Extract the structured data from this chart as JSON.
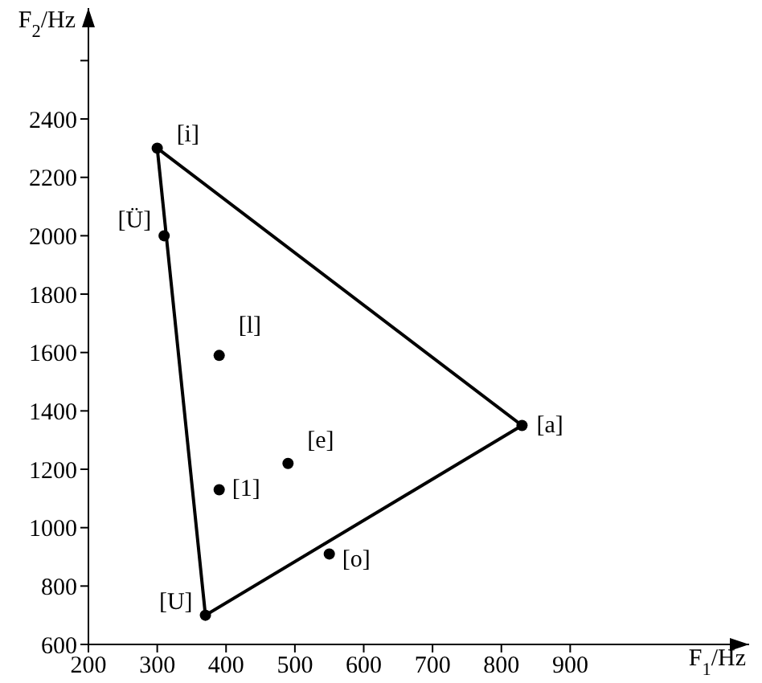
{
  "chart_data": {
    "type": "scatter",
    "xlabel": "F$_{1}$/Hz",
    "ylabel": "F$_{2}$/Hz",
    "xlim": [
      200,
      1160
    ],
    "xticks": [
      200,
      300,
      400,
      500,
      600,
      700,
      800,
      900
    ],
    "ylim": [
      600,
      2780
    ],
    "yticks": [
      600,
      800,
      1000,
      1200,
      1400,
      1600,
      1800,
      2000,
      2200,
      2400,
      {
        "value": 2600,
        "label": null
      }
    ],
    "series": [
      {
        "type": "line",
        "color": "#000000",
        "marker": "none",
        "x": [
          300,
          830
        ],
        "values": [
          2300,
          1350
        ]
      },
      {
        "type": "line",
        "color": "#000000",
        "marker": "none",
        "x": [
          370,
          830
        ],
        "values": [
          700,
          1350
        ]
      },
      {
        "type": "line",
        "color": "#000000",
        "marker": "none",
        "x": [
          300,
          370
        ],
        "values": [
          2300,
          700
        ]
      },
      {
        "color": "#000000",
        "marker": "circle",
        "x": [
          300,
          310,
          390,
          390,
          370,
          490,
          550,
          830
        ],
        "values": [
          2300,
          2000,
          1590,
          1130,
          700,
          1220,
          910,
          1350
        ]
      }
    ],
    "annotations": [
      {
        "text": "[i]",
        "x": 300,
        "y": 2300
      },
      {
        "text": "[Ü]",
        "x": 310,
        "y": 2000
      },
      {
        "text": "[l]",
        "x": 390,
        "y": 1590
      },
      {
        "text": "[1]",
        "x": 390,
        "y": 1130
      },
      {
        "text": "[U]",
        "x": 370,
        "y": 700
      },
      {
        "text": "[e]",
        "x": 490,
        "y": 1220
      },
      {
        "text": "[o]",
        "x": 550,
        "y": 910
      },
      {
        "text": "[a]",
        "x": 830,
        "y": 1350
      }
    ],
    "grid": false,
    "legend": false
  }
}
